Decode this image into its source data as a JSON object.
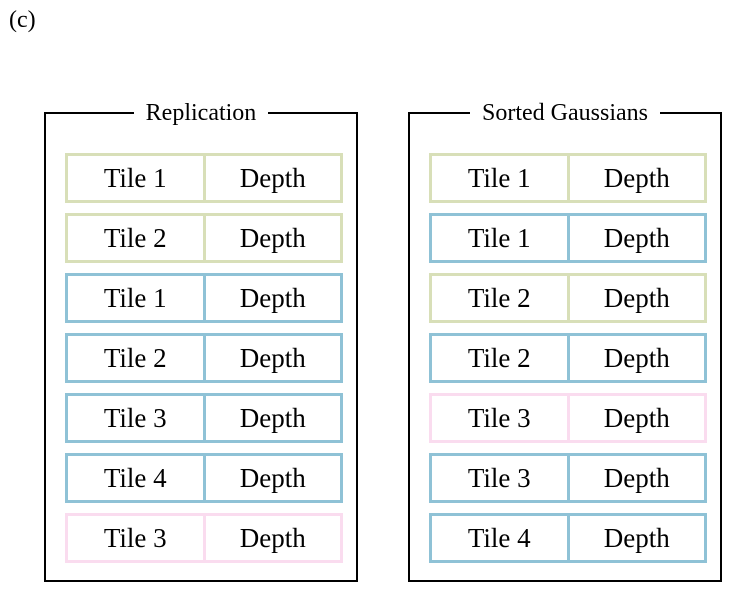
{
  "panel_label": "(c)",
  "colors": {
    "green": "#d8dfb8",
    "blue": "#8fc2d6",
    "pink": "#fadcef"
  },
  "groups": [
    {
      "title": "Replication",
      "rows": [
        {
          "tile": "Tile 1",
          "depth": "Depth",
          "color": "green"
        },
        {
          "tile": "Tile 2",
          "depth": "Depth",
          "color": "green"
        },
        {
          "tile": "Tile 1",
          "depth": "Depth",
          "color": "blue"
        },
        {
          "tile": "Tile 2",
          "depth": "Depth",
          "color": "blue"
        },
        {
          "tile": "Tile 3",
          "depth": "Depth",
          "color": "blue"
        },
        {
          "tile": "Tile 4",
          "depth": "Depth",
          "color": "blue"
        },
        {
          "tile": "Tile 3",
          "depth": "Depth",
          "color": "pink"
        }
      ]
    },
    {
      "title": "Sorted Gaussians",
      "rows": [
        {
          "tile": "Tile 1",
          "depth": "Depth",
          "color": "green"
        },
        {
          "tile": "Tile 1",
          "depth": "Depth",
          "color": "blue"
        },
        {
          "tile": "Tile 2",
          "depth": "Depth",
          "color": "green"
        },
        {
          "tile": "Tile 2",
          "depth": "Depth",
          "color": "blue"
        },
        {
          "tile": "Tile 3",
          "depth": "Depth",
          "color": "pink"
        },
        {
          "tile": "Tile 3",
          "depth": "Depth",
          "color": "blue"
        },
        {
          "tile": "Tile 4",
          "depth": "Depth",
          "color": "blue"
        }
      ]
    }
  ]
}
